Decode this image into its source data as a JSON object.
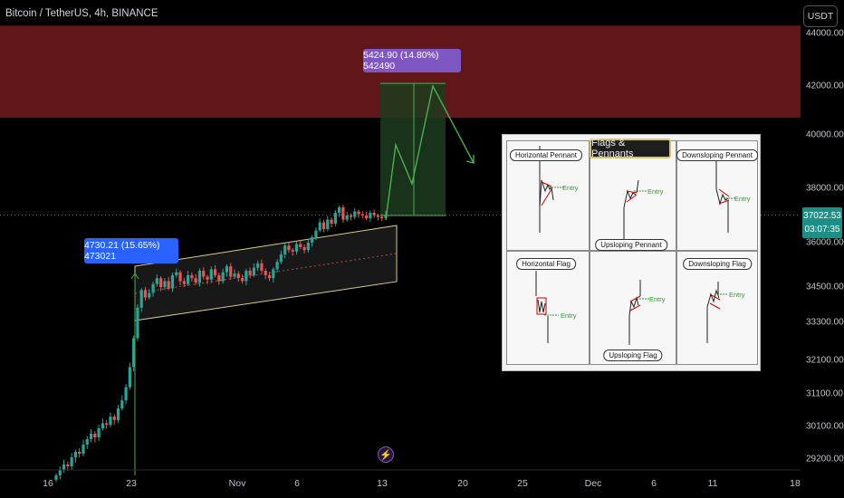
{
  "header": {
    "symbol": "Bitcoin / TetherUS, 4h, BINANCE",
    "currency": "USDT"
  },
  "price_tag": {
    "price": "37022.53",
    "countdown": "03:07:35"
  },
  "callouts": {
    "target": "5424.90 (14.80%) 542490",
    "impulse": "4730.21 (15.65%) 473021"
  },
  "colors": {
    "background": "#000000",
    "resistance_zone": "#6b1a1c",
    "up_candle": "#26a69a",
    "down_candle": "#ef5350",
    "channel": "#d8cd8a",
    "projection": "#4caf50"
  },
  "inset": {
    "title": "Flags & Pennants",
    "labels": {
      "horizontal_pennant": "Horizontal Pennant",
      "downsloping_pennant": "Downsloping Pennant",
      "upsloping_pennant": "Upsloping Pennant",
      "horizontal_flag": "Horizontal Flag",
      "downsloping_flag": "Downsloping Flag",
      "upsloping_flag": "Upsloping Flag"
    },
    "entry_label": "Entry"
  },
  "chart_data": {
    "type": "candlestick",
    "title": "Bitcoin / TetherUS, 4h, BINANCE",
    "y_ticks": [
      "44000.00",
      "42000.00",
      "40000.00",
      "38000.00",
      "36000.00",
      "34500.00",
      "33300.00",
      "32100.00",
      "31100.00",
      "30100.00",
      "29200.00"
    ],
    "x_ticks": [
      "16",
      "23",
      "Nov",
      "6",
      "13",
      "20",
      "25",
      "Dec",
      "6",
      "11",
      "18"
    ],
    "last_price": 37022.53,
    "resistance_zone": [
      40700,
      44300
    ],
    "target_box": {
      "from": 37000,
      "to": 42100,
      "change": 5424.9,
      "percent": 14.8
    },
    "impulse": {
      "change": 4730.21,
      "percent": 15.65
    },
    "closes": [
      28750,
      28900,
      29050,
      29000,
      29250,
      29400,
      29350,
      29600,
      29750,
      29900,
      29800,
      30050,
      30200,
      30150,
      30400,
      30300,
      30650,
      30900,
      31300,
      31900,
      32800,
      33800,
      34400,
      34150,
      34300,
      34600,
      34800,
      34500,
      34700,
      34450,
      34900,
      35000,
      34700,
      34600,
      34900,
      34800,
      34650,
      35050,
      34850,
      34750,
      35100,
      34900,
      34700,
      35000,
      35200,
      34850,
      34950,
      34800,
      34700,
      35050,
      34900,
      35150,
      35300,
      35050,
      34900,
      34800,
      35100,
      35350,
      35600,
      35900,
      35750,
      35700,
      35950,
      35850,
      35750,
      36000,
      36200,
      36450,
      36750,
      36500,
      36850,
      36700,
      37100,
      37300,
      36850,
      37000,
      36950,
      37150,
      37050,
      37000,
      36900,
      37100,
      37000,
      36950,
      36900,
      37022
    ]
  }
}
